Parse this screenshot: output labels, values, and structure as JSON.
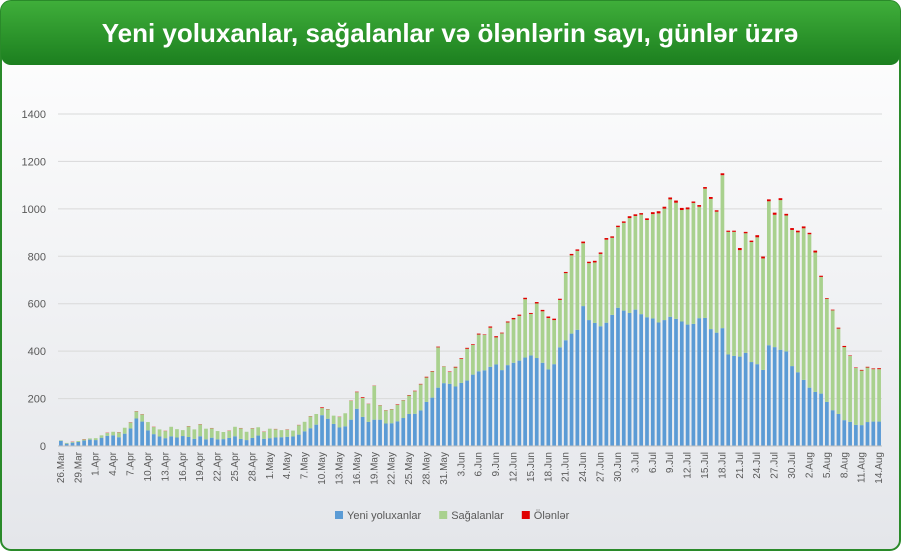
{
  "chart_data": {
    "type": "stacked_bar",
    "title": "Yeni yoluxanlar, sağalanlar və ölənlərin sayı, günlər üzrə",
    "categories": [
      "26.Mar",
      null,
      null,
      "29.Mar",
      null,
      null,
      "1.Apr",
      null,
      null,
      "4.Apr",
      null,
      null,
      "7.Apr",
      null,
      null,
      "10.Apr",
      null,
      null,
      "13.Apr",
      null,
      null,
      "16.Apr",
      null,
      null,
      "19.Apr",
      null,
      null,
      "22.Apr",
      null,
      null,
      "25.Apr",
      null,
      null,
      "28.Apr",
      null,
      null,
      "1.May",
      null,
      null,
      "4.May",
      null,
      null,
      "7.May",
      null,
      null,
      "10.May",
      null,
      null,
      "13.May",
      null,
      null,
      "16.May",
      null,
      null,
      "19.May",
      null,
      null,
      "22.May",
      null,
      null,
      "25.May",
      null,
      null,
      "28.May",
      null,
      null,
      "31.May",
      null,
      null,
      "3.Jun",
      null,
      null,
      "6.Jun",
      null,
      null,
      "9.Jun",
      null,
      null,
      "12.Jun",
      null,
      null,
      "15.Jun",
      null,
      null,
      "18.Jun",
      null,
      null,
      "21.Jun",
      null,
      null,
      "24.Jun",
      null,
      null,
      "27.Jun",
      null,
      null,
      "30.Jun",
      null,
      null,
      "3.Jul",
      null,
      null,
      "6.Jul",
      null,
      null,
      "9.Jul",
      null,
      null,
      "12.Jul",
      null,
      null,
      "15.Jul",
      null,
      null,
      "18.Jul",
      null,
      null,
      "21.Jul",
      null,
      null,
      "24.Jul",
      null,
      null,
      "27.Jul",
      null,
      null,
      "30.Jul",
      null,
      null,
      "2.Aug",
      null,
      null,
      "5.Aug",
      null,
      null,
      "8.Aug",
      null,
      null,
      "11.Aug",
      null,
      null,
      "14.Aug"
    ],
    "series": [
      {
        "name": "Yeni yoluxanlar",
        "color": "#5b9bd5",
        "values": [
          22,
          10,
          14,
          17,
          23,
          27,
          25,
          35,
          43,
          45,
          37,
          52,
          74,
          116,
          103,
          66,
          50,
          40,
          33,
          41,
          36,
          42,
          38,
          30,
          41,
          28,
          35,
          28,
          29,
          34,
          41,
          30,
          25,
          34,
          44,
          30,
          33,
          36,
          37,
          39,
          40,
          48,
          62,
          75,
          90,
          130,
          115,
          93,
          78,
          83,
          111,
          157,
          123,
          102,
          111,
          111,
          95,
          96,
          104,
          118,
          135,
          136,
          150,
          186,
          204,
          246,
          265,
          262,
          251,
          266,
          276,
          301,
          315,
          319,
          334,
          344,
          320,
          341,
          351,
          360,
          373,
          382,
          371,
          351,
          323,
          345,
          416,
          446,
          474,
          490,
          590,
          531,
          519,
          505,
          520,
          553,
          583,
          571,
          561,
          575,
          556,
          543,
          538,
          521,
          531,
          545,
          536,
          525,
          512,
          515,
          539,
          540,
          493,
          478,
          497,
          386,
          380,
          377,
          393,
          354,
          345,
          321,
          425,
          417,
          406,
          399,
          337,
          311,
          279,
          246,
          228,
          221,
          186,
          151,
          135,
          109,
          102,
          89,
          88,
          101,
          103,
          103
        ]
      },
      {
        "name": "Sağalanlar",
        "color": "#a9d18e",
        "values": [
          2,
          3,
          3,
          4,
          5,
          5,
          8,
          10,
          12,
          15,
          20,
          25,
          25,
          30,
          30,
          35,
          30,
          30,
          30,
          40,
          35,
          25,
          45,
          40,
          50,
          45,
          40,
          35,
          30,
          30,
          40,
          45,
          35,
          40,
          35,
          30,
          40,
          35,
          30,
          30,
          25,
          40,
          40,
          50,
          45,
          30,
          40,
          35,
          45,
          55,
          80,
          70,
          80,
          75,
          143,
          60,
          55,
          59,
          70,
          75,
          78,
          95,
          110,
          103,
          110,
          170,
          70,
          50,
          80,
          101,
          134,
          125,
          155,
          150,
          165,
          114,
          155,
          180,
          183,
          189,
          246,
          175,
          230,
          217,
          217,
          186,
          200,
          283,
          330,
          333,
          265,
          240,
          255,
          305,
          350,
          325,
          340,
          370,
          400,
          395,
          420,
          410,
          440,
          460,
          470,
          495,
          490,
          470,
          486,
          510,
          470,
          545,
          549,
          510,
          645,
          517,
          523,
          449,
          504,
          506,
          535,
          470,
          607,
          558,
          631,
          573,
          574,
          590,
          639,
          647,
          588,
          492,
          435,
          421,
          360,
          308,
          278,
          240,
          230,
          230,
          221,
          221
        ]
      },
      {
        "name": "Ölənlər",
        "color": "#e00000",
        "values": [
          0,
          0,
          1,
          0,
          1,
          0,
          0,
          0,
          1,
          0,
          1,
          0,
          1,
          1,
          1,
          0,
          1,
          0,
          1,
          0,
          0,
          0,
          1,
          0,
          1,
          0,
          1,
          0,
          0,
          1,
          0,
          1,
          0,
          1,
          0,
          1,
          0,
          1,
          0,
          1,
          0,
          1,
          0,
          1,
          0,
          3,
          1,
          0,
          1,
          0,
          1,
          2,
          3,
          1,
          1,
          1,
          1,
          1,
          2,
          1,
          2,
          2,
          2,
          3,
          2,
          3,
          1,
          2,
          3,
          3,
          4,
          3,
          4,
          2,
          5,
          5,
          3,
          4,
          6,
          5,
          6,
          4,
          6,
          6,
          6,
          6,
          5,
          5,
          6,
          6,
          7,
          6,
          7,
          6,
          7,
          6,
          6,
          6,
          8,
          7,
          6,
          7,
          8,
          9,
          8,
          8,
          9,
          9,
          8,
          6,
          7,
          7,
          8,
          6,
          8,
          5,
          5,
          9,
          6,
          6,
          9,
          8,
          8,
          9,
          8,
          7,
          8,
          7,
          8,
          6,
          8,
          5,
          3,
          3,
          4,
          5,
          2,
          2,
          3,
          3,
          3,
          4
        ]
      }
    ],
    "ylim": [
      0,
      1400
    ],
    "yticks": [
      0,
      200,
      400,
      600,
      800,
      1000,
      1200,
      1400
    ],
    "grid": true,
    "legend": "bottom"
  }
}
